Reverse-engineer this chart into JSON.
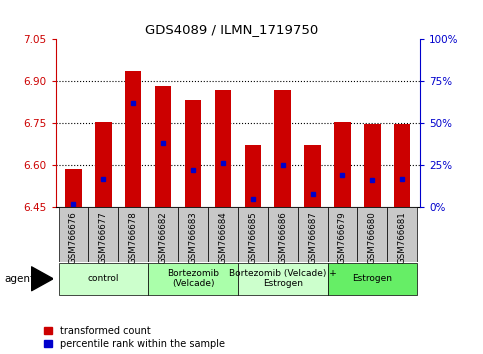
{
  "title": "GDS4089 / ILMN_1719750",
  "samples": [
    "GSM766676",
    "GSM766677",
    "GSM766678",
    "GSM766682",
    "GSM766683",
    "GSM766684",
    "GSM766685",
    "GSM766686",
    "GSM766687",
    "GSM766679",
    "GSM766680",
    "GSM766681"
  ],
  "transformed_count": [
    6.585,
    6.752,
    6.935,
    6.882,
    6.832,
    6.867,
    6.67,
    6.867,
    6.67,
    6.752,
    6.745,
    6.748
  ],
  "percentile_rank": [
    2,
    17,
    62,
    38,
    22,
    26,
    5,
    25,
    8,
    19,
    16,
    17
  ],
  "ymin": 6.45,
  "ymax": 7.05,
  "yticks": [
    6.45,
    6.6,
    6.75,
    6.9,
    7.05
  ],
  "y2ticks": [
    0,
    25,
    50,
    75,
    100
  ],
  "y2labels": [
    "0%",
    "25%",
    "50%",
    "75%",
    "100%"
  ],
  "bar_color": "#cc0000",
  "marker_color": "#0000cc",
  "groups": [
    {
      "label": "control",
      "start": 0,
      "end": 3,
      "color": "#ccffcc"
    },
    {
      "label": "Bortezomib\n(Velcade)",
      "start": 3,
      "end": 6,
      "color": "#aaffaa"
    },
    {
      "label": "Bortezomib (Velcade) +\nEstrogen",
      "start": 6,
      "end": 9,
      "color": "#ccffcc"
    },
    {
      "label": "Estrogen",
      "start": 9,
      "end": 12,
      "color": "#66ee66"
    }
  ],
  "agent_label": "agent",
  "bar_width": 0.55,
  "grid_color": "#000000",
  "tick_bg_color": "#c8c8c8"
}
